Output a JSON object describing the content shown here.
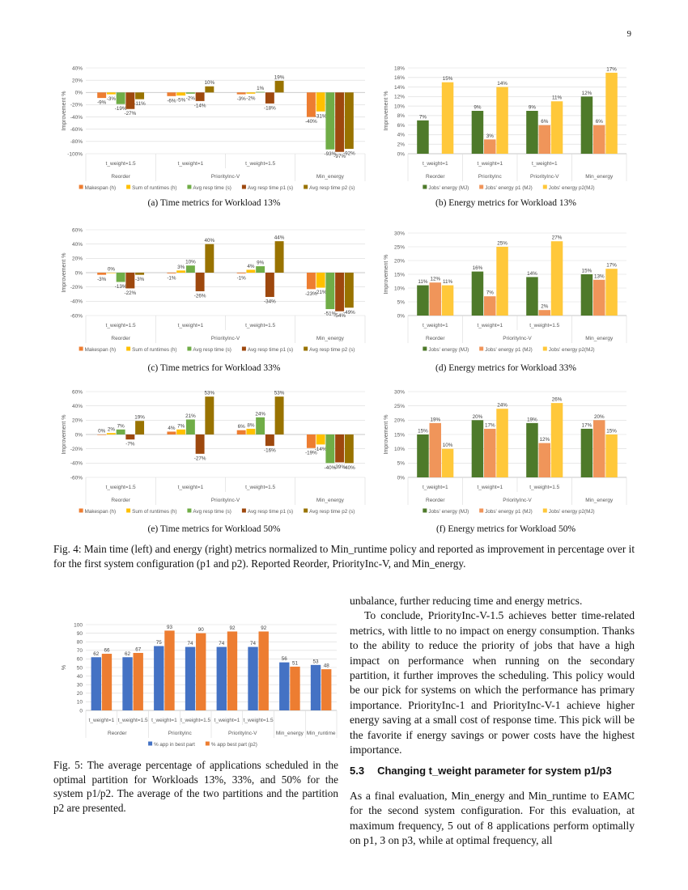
{
  "page_number": "9",
  "figure4": {
    "caption": "Fig. 4: Main time (left) and energy (right) metrics normalized to Min_runtime policy and reported as improvement in percentage over it for the first system configuration (p1 and p2). Reported Reorder, PriorityInc-V, and Min_energy.",
    "subcaptions": {
      "a": "(a) Time metrics for Workload 13%",
      "b": "(b) Energy metrics for Workload 13%",
      "c": "(c) Time metrics for Workload 33%",
      "d": "(d) Energy metrics for Workload 33%",
      "e": "(e) Time metrics for Workload 50%",
      "f": "(f) Energy metrics for Workload 50%"
    }
  },
  "figure5": {
    "caption": "Fig. 5: The average percentage of applications scheduled in the optimal partition for Workloads 13%, 33%, and 50% for the system p1/p2. The average of the two partitions and the partition p2 are presented."
  },
  "body": {
    "p1": "unbalance, further reducing time and energy metrics.",
    "p2": "To conclude, PriorityInc-V-1.5 achieves better time-related metrics, with little to no impact on energy consumption. Thanks to the ability to reduce the priority of jobs that have a high impact on performance when running on the secondary partition, it further improves the scheduling. This policy would be our pick for systems on which the performance has primary importance. PriorityInc-1 and PriorityInc-V-1 achieve higher energy saving at a small cost of response time. This pick will be the favorite if energy savings or power costs have the highest importance.",
    "section_number": "5.3",
    "section_title": "Changing t_weight parameter for system p1/p3",
    "p3": "As a final evaluation, Min_energy and Min_runtime to EAMC for the second system configuration. For this evaluation, at maximum frequency, 5 out of 8 applications perform optimally on p1, 3 on p3, while at optimal frequency, all"
  },
  "chart_data": [
    {
      "id": "a",
      "type": "bar",
      "ylabel": "Improvement %",
      "ylim": [
        -100,
        40
      ],
      "y_step": 20,
      "tick_suffix": "%",
      "grid": true,
      "legend": "bottom",
      "groups": [
        {
          "name": "Reorder",
          "subs": [
            "t_weight=1.5"
          ]
        },
        {
          "name": "PriorityInc-V",
          "subs": [
            "t_weight=1",
            "t_weight=1.5"
          ]
        },
        {
          "name": "Min_energy",
          "subs": [
            ""
          ]
        }
      ],
      "series": [
        {
          "name": "Makespan (h)",
          "color": "#ED7D31",
          "values": [
            -9,
            -6,
            -3,
            -40
          ]
        },
        {
          "name": "Sum of runtimes (h)",
          "color": "#FFC000",
          "values": [
            -3,
            -5,
            -2,
            -31
          ]
        },
        {
          "name": "Avg resp time (s)",
          "color": "#70AD47",
          "values": [
            -19,
            -2,
            1,
            -93
          ]
        },
        {
          "name": "Avg resp time p1 (s)",
          "color": "#9E480E",
          "values": [
            -27,
            -14,
            -18,
            -97
          ]
        },
        {
          "name": "Avg resp time p2 (s)",
          "color": "#997300",
          "values": [
            -11,
            10,
            19,
            -92
          ]
        }
      ]
    },
    {
      "id": "b",
      "type": "bar",
      "ylabel": "Improvement %",
      "ylim": [
        0,
        18
      ],
      "y_step": 2,
      "tick_suffix": "%",
      "grid": true,
      "legend": "bottom",
      "groups": [
        {
          "name": "Reorder",
          "subs": [
            "t_weight=1"
          ]
        },
        {
          "name": "PriorityInc",
          "subs": [
            "t_weight=1"
          ]
        },
        {
          "name": "PriorityInc-V",
          "subs": [
            "t_weight=1"
          ]
        },
        {
          "name": "Min_energy",
          "subs": [
            ""
          ]
        }
      ],
      "series": [
        {
          "name": "Jobs' energy (MJ)",
          "color": "#4E7A2A",
          "values": [
            7,
            9,
            9,
            12
          ]
        },
        {
          "name": "Jobs' energy p1 (MJ)",
          "color": "#F0955A",
          "values": [
            null,
            3,
            6,
            6
          ]
        },
        {
          "name": "Jobs' energy p2(MJ)",
          "color": "#FFC83A",
          "values": [
            15,
            14,
            11,
            17
          ]
        }
      ]
    },
    {
      "id": "c",
      "type": "bar",
      "ylabel": "Improvement %",
      "ylim": [
        -60,
        60
      ],
      "y_step": 20,
      "tick_suffix": "%",
      "grid": true,
      "legend": "bottom",
      "groups": [
        {
          "name": "Reorder",
          "subs": [
            "t_weight=1.5"
          ]
        },
        {
          "name": "PriorityInc-V",
          "subs": [
            "t_weight=1",
            "t_weight=1.5"
          ]
        },
        {
          "name": "Min_energy",
          "subs": [
            ""
          ]
        }
      ],
      "series": [
        {
          "name": "Makespan (h)",
          "color": "#ED7D31",
          "values": [
            -3,
            -1,
            -1,
            -23
          ]
        },
        {
          "name": "Sum of runtimes (h)",
          "color": "#FFC000",
          "values": [
            0,
            3,
            4,
            -21
          ]
        },
        {
          "name": "Avg resp time (s)",
          "color": "#70AD47",
          "values": [
            -13,
            10,
            9,
            -51
          ]
        },
        {
          "name": "Avg resp time p1 (s)",
          "color": "#9E480E",
          "values": [
            -22,
            -26,
            -34,
            -54
          ]
        },
        {
          "name": "Avg resp time p2 (s)",
          "color": "#997300",
          "values": [
            -3,
            40,
            44,
            -49
          ]
        }
      ]
    },
    {
      "id": "d",
      "type": "bar",
      "ylabel": "Improvement %",
      "ylim": [
        0,
        30
      ],
      "y_step": 5,
      "tick_suffix": "%",
      "grid": true,
      "legend": "bottom",
      "groups": [
        {
          "name": "Reorder",
          "subs": [
            "t_weight=1"
          ]
        },
        {
          "name": "PriorityInc-V",
          "subs": [
            "t_weight=1",
            "t_weight=1.5"
          ]
        },
        {
          "name": "Min_energy",
          "subs": [
            ""
          ]
        }
      ],
      "series": [
        {
          "name": "Jobs' energy (MJ)",
          "color": "#4E7A2A",
          "values": [
            11,
            16,
            14,
            15
          ]
        },
        {
          "name": "Jobs' energy p1 (MJ)",
          "color": "#F0955A",
          "values": [
            12,
            7,
            2,
            13
          ]
        },
        {
          "name": "Jobs' energy p2(MJ)",
          "color": "#FFC83A",
          "values": [
            11,
            25,
            27,
            17
          ]
        }
      ]
    },
    {
      "id": "e",
      "type": "bar",
      "ylabel": "Improvement %",
      "ylim": [
        -60,
        60
      ],
      "y_step": 20,
      "tick_suffix": "%",
      "grid": true,
      "legend": "bottom",
      "groups": [
        {
          "name": "Reorder",
          "subs": [
            "t_weight=1.5"
          ]
        },
        {
          "name": "PriorityInc-V",
          "subs": [
            "t_weight=1",
            "t_weight=1.5"
          ]
        },
        {
          "name": "Min_energy",
          "subs": [
            ""
          ]
        }
      ],
      "series": [
        {
          "name": "Makespan (h)",
          "color": "#ED7D31",
          "values": [
            0,
            4,
            6,
            -19
          ]
        },
        {
          "name": "Sum of runtimes (h)",
          "color": "#FFC000",
          "values": [
            2,
            7,
            8,
            -14
          ]
        },
        {
          "name": "Avg resp time (s)",
          "color": "#70AD47",
          "values": [
            7,
            21,
            24,
            -40
          ]
        },
        {
          "name": "Avg resp time p1 (s)",
          "color": "#9E480E",
          "values": [
            -7,
            -27,
            -16,
            -39
          ]
        },
        {
          "name": "Avg resp time p2 (s)",
          "color": "#997300",
          "values": [
            19,
            53,
            53,
            -40
          ]
        }
      ]
    },
    {
      "id": "f",
      "type": "bar",
      "ylabel": "Improvement %",
      "ylim": [
        0,
        30
      ],
      "y_step": 5,
      "tick_suffix": "%",
      "grid": true,
      "legend": "bottom",
      "groups": [
        {
          "name": "Reorder",
          "subs": [
            "t_weight=1"
          ]
        },
        {
          "name": "PriorityInc-V",
          "subs": [
            "t_weight=1",
            "t_weight=1.5"
          ]
        },
        {
          "name": "Min_energy",
          "subs": [
            ""
          ]
        }
      ],
      "series": [
        {
          "name": "Jobs' energy (MJ)",
          "color": "#4E7A2A",
          "values": [
            15,
            20,
            19,
            17
          ]
        },
        {
          "name": "Jobs' energy p1 (MJ)",
          "color": "#F0955A",
          "values": [
            19,
            17,
            12,
            20
          ]
        },
        {
          "name": "Jobs' energy p2(MJ)",
          "color": "#FFC83A",
          "values": [
            10,
            24,
            26,
            15
          ]
        }
      ]
    },
    {
      "id": "fig5",
      "type": "bar",
      "ylabel": "%",
      "ylim": [
        0,
        100
      ],
      "y_step": 10,
      "tick_suffix": "",
      "grid": true,
      "legend": "bottom",
      "groups": [
        {
          "name": "Reorder",
          "subs": [
            "t_weight=1",
            "t_weight=1.5"
          ]
        },
        {
          "name": "PriorityInc",
          "subs": [
            "t_weight=1",
            "t_weight=1.5"
          ]
        },
        {
          "name": "PriorityInc-V",
          "subs": [
            "t_weight=1",
            "t_weight=1.5"
          ]
        },
        {
          "name": "Min_energy",
          "subs": [
            ""
          ]
        },
        {
          "name": "Min_runtime",
          "subs": [
            ""
          ]
        }
      ],
      "series": [
        {
          "name": "% app in best part",
          "color": "#4472C4",
          "values": [
            62,
            62,
            75,
            74,
            74,
            74,
            56,
            53
          ]
        },
        {
          "name": "% app best part (p2)",
          "color": "#ED7D31",
          "values": [
            66,
            67,
            93,
            90,
            92,
            92,
            51,
            48
          ]
        }
      ]
    }
  ]
}
